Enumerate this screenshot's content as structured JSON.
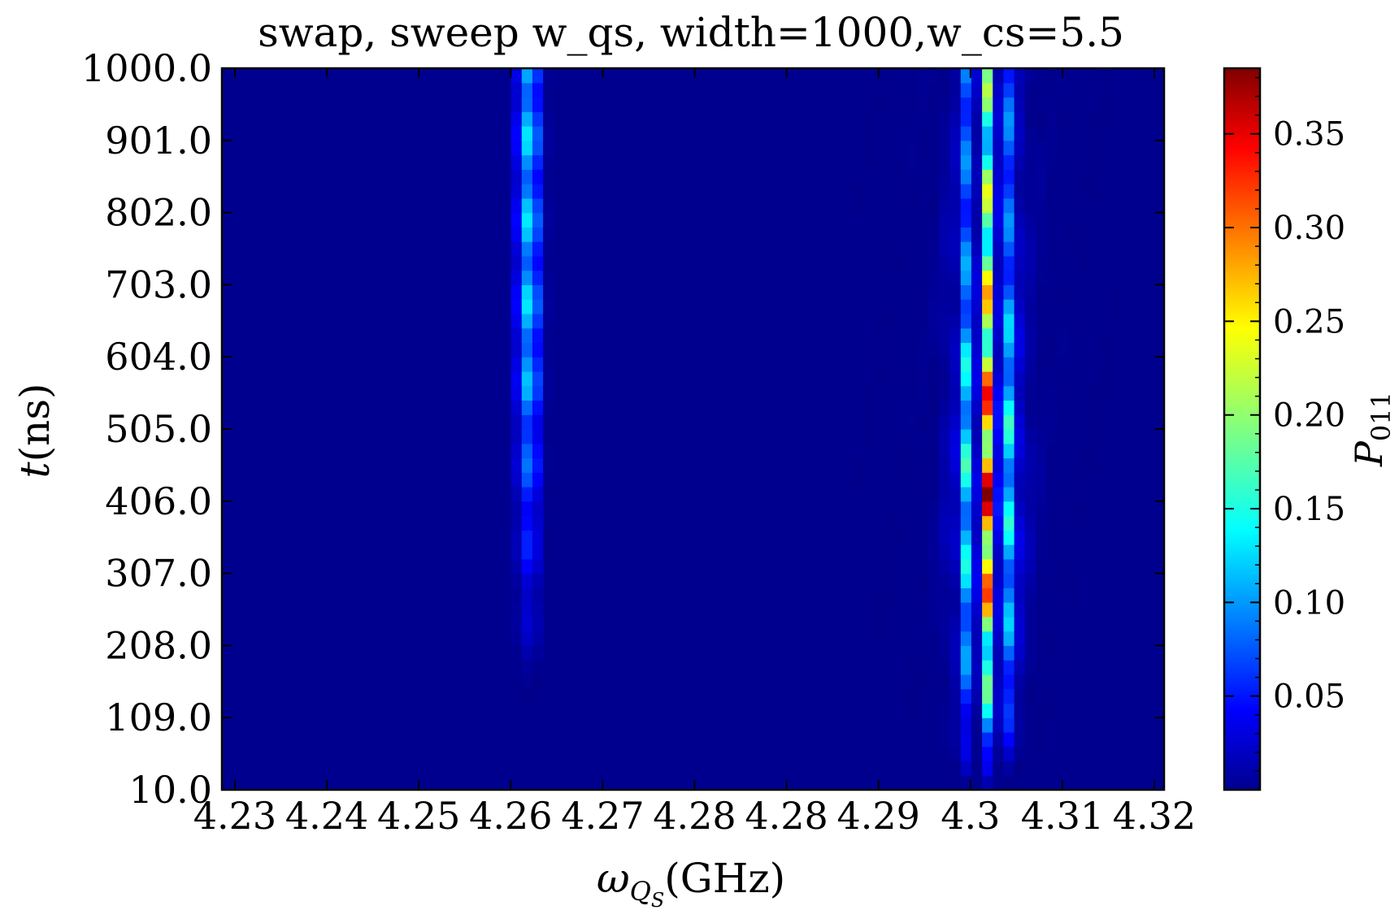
{
  "chart_data": {
    "type": "heatmap",
    "title": "swap, sweep w_qs, width=1000,w_cs=5.5",
    "xlabel": "ω",
    "xlabel_sub": "Q",
    "xlabel_subsub": "S",
    "xlabel_unit": "(GHz)",
    "ylabel": "t",
    "ylabel_unit": "(ns)",
    "x_tick_labels": [
      "4.23",
      "4.24",
      "4.25",
      "4.26",
      "4.27",
      "4.28",
      "4.28",
      "4.29",
      "4.3",
      "4.31",
      "4.32"
    ],
    "y_tick_labels": [
      "10.0",
      "109.0",
      "208.0",
      "307.0",
      "406.0",
      "505.0",
      "604.0",
      "703.0",
      "802.0",
      "901.0",
      "1000.0"
    ],
    "xlim": [
      4.227,
      4.32
    ],
    "ylim": [
      10.0,
      1000.0
    ],
    "colorbar": {
      "label": "P",
      "label_sub": "011",
      "colormap": "jet",
      "range": [
        0.0,
        0.385
      ],
      "tick_labels": [
        "0.05",
        "0.10",
        "0.15",
        "0.20",
        "0.25",
        "0.30",
        "0.35"
      ],
      "tick_values": [
        0.05,
        0.1,
        0.15,
        0.2,
        0.25,
        0.3,
        0.35
      ]
    },
    "grid": false,
    "resonances": [
      {
        "x_center": 4.2573,
        "peak_value": 0.14
      },
      {
        "x_center": 4.3026,
        "peak_value": 0.385
      }
    ]
  }
}
